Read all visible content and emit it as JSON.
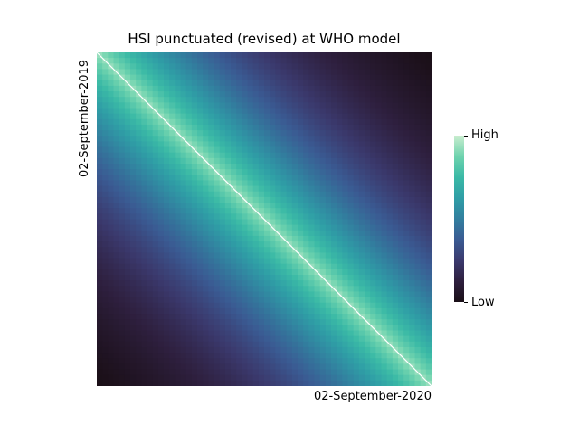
{
  "chart_data": {
    "type": "heatmap",
    "title": "HSI punctuated (revised) at WHO model",
    "ylabel": "02-September-2019",
    "xlabel": "02-September-2020",
    "colorbar": {
      "high_label": "High",
      "low_label": "Low"
    },
    "grid": false,
    "colormap": [
      "#1a0f17",
      "#2e1f3e",
      "#3b3a6e",
      "#3a5b93",
      "#327f9f",
      "#2f9ea6",
      "#3ab9a6",
      "#6ed3ae",
      "#c9edcf"
    ],
    "diagonal_color": "#ffffff"
  }
}
